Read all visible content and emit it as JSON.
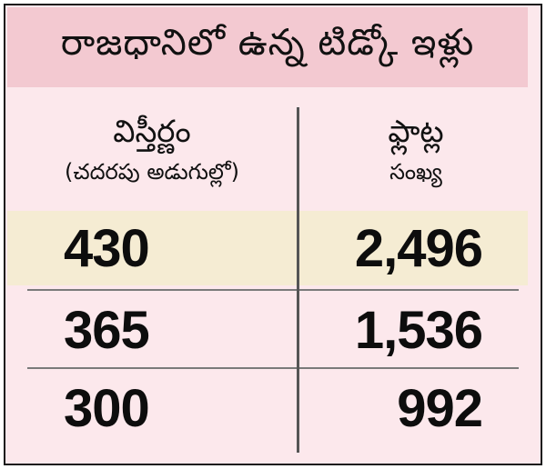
{
  "title": "రాజధానిలో ఉన్న టిడ్కో ఇళ్లు",
  "columns": {
    "area": {
      "label": "విస్తీర్ణం",
      "sublabel": "(చదరపు అడుగుల్లో)"
    },
    "flats": {
      "label": "ఫ్లాట్ల",
      "sublabel": "సంఖ్య"
    }
  },
  "rows": [
    {
      "area": "430",
      "flats": "2,496"
    },
    {
      "area": "365",
      "flats": "1,536"
    },
    {
      "area": "300",
      "flats": "992"
    }
  ],
  "colors": {
    "title_background": "#f3c9d1",
    "body_background": "#fce8ec",
    "highlight_row": "#f5ecd3"
  }
}
